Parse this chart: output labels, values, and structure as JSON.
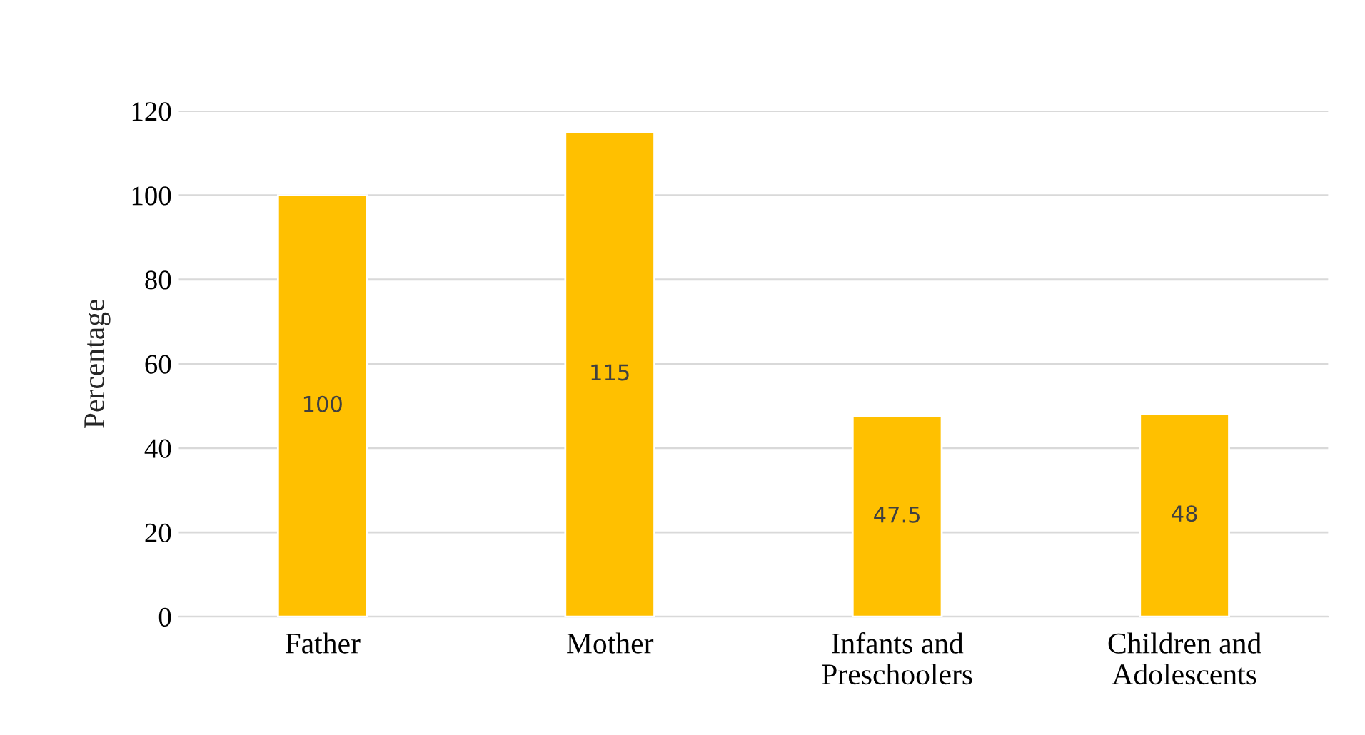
{
  "chart_data": {
    "type": "bar",
    "ylabel": "Percentage",
    "categories": [
      "Father",
      "Mother",
      "Infants and\nPreschoolers",
      "Children and\nAdolescents"
    ],
    "values": [
      100,
      115,
      47.5,
      48
    ],
    "color": "#ffc000",
    "ylim": [
      0,
      120
    ],
    "yticks": [
      0,
      20,
      40,
      60,
      80,
      100,
      120
    ],
    "grid": "y",
    "data_labels": true,
    "legend": false
  }
}
